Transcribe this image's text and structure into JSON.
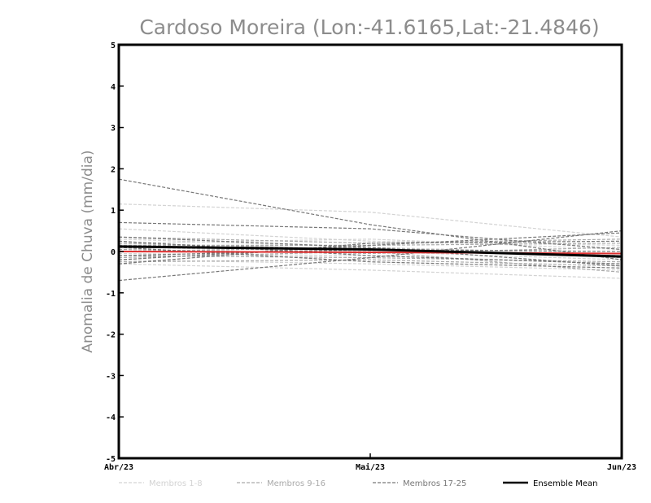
{
  "chart_data": {
    "type": "line",
    "title": "Cardoso Moreira (Lon:-41.6165,Lat:-21.4846)",
    "ylabel": "Anomalia de Chuva (mm/dia)",
    "xlabel": "",
    "categories": [
      "Abr/23",
      "Mai/23",
      "Jun/23"
    ],
    "ylim": [
      -5,
      5
    ],
    "yticks": [
      "5",
      "4",
      "3",
      "2",
      "1",
      "0",
      "-1",
      "-2",
      "-3",
      "-4",
      "-5"
    ],
    "grid": false,
    "legend_position": "bottom",
    "legend": [
      {
        "label": "Membros 1-8",
        "color": "#d3d3d3",
        "style": "dashed"
      },
      {
        "label": "Membros 9-16",
        "color": "#aaaaaa",
        "style": "dashed"
      },
      {
        "label": "Membros 17-25",
        "color": "#777777",
        "style": "dashed"
      },
      {
        "label": "Ensemble Mean",
        "color": "#000000",
        "style": "solid"
      }
    ],
    "series": [
      {
        "group": 1,
        "values": [
          1.15,
          0.95,
          0.35
        ]
      },
      {
        "group": 1,
        "values": [
          0.55,
          0.25,
          0.15
        ]
      },
      {
        "group": 1,
        "values": [
          0.3,
          0.1,
          -0.05
        ]
      },
      {
        "group": 1,
        "values": [
          0.1,
          0.0,
          -0.2
        ]
      },
      {
        "group": 1,
        "values": [
          -0.05,
          -0.1,
          -0.3
        ]
      },
      {
        "group": 1,
        "values": [
          -0.2,
          -0.3,
          -0.45
        ]
      },
      {
        "group": 1,
        "values": [
          -0.3,
          -0.45,
          -0.65
        ]
      },
      {
        "group": 1,
        "values": [
          0.2,
          0.3,
          0.05
        ]
      },
      {
        "group": 2,
        "values": [
          0.35,
          0.2,
          0.3
        ]
      },
      {
        "group": 2,
        "values": [
          0.2,
          0.05,
          -0.1
        ]
      },
      {
        "group": 2,
        "values": [
          0.05,
          -0.05,
          0.1
        ]
      },
      {
        "group": 2,
        "values": [
          -0.1,
          -0.15,
          -0.25
        ]
      },
      {
        "group": 2,
        "values": [
          -0.25,
          -0.2,
          -0.35
        ]
      },
      {
        "group": 2,
        "values": [
          0.15,
          0.15,
          0.2
        ]
      },
      {
        "group": 2,
        "values": [
          -0.15,
          0.0,
          -0.5
        ]
      },
      {
        "group": 2,
        "values": [
          0.0,
          0.1,
          -0.15
        ]
      },
      {
        "group": 3,
        "values": [
          1.75,
          0.65,
          -0.2
        ]
      },
      {
        "group": 3,
        "values": [
          0.7,
          0.55,
          0.05
        ]
      },
      {
        "group": 3,
        "values": [
          -0.7,
          -0.15,
          0.5
        ]
      },
      {
        "group": 3,
        "values": [
          0.35,
          0.1,
          -0.35
        ]
      },
      {
        "group": 3,
        "values": [
          -0.2,
          0.15,
          0.45
        ]
      },
      {
        "group": 3,
        "values": [
          0.25,
          -0.1,
          -0.3
        ]
      },
      {
        "group": 3,
        "values": [
          -0.3,
          0.2,
          0.25
        ]
      },
      {
        "group": 3,
        "values": [
          0.1,
          -0.25,
          -0.4
        ]
      },
      {
        "group": 3,
        "values": [
          -0.1,
          0.05,
          0.0
        ]
      }
    ],
    "reference": {
      "values": [
        0.0,
        -0.02,
        -0.05
      ],
      "color": "#e03030"
    },
    "ensemble_mean": {
      "name": "Ensemble Mean",
      "values": [
        0.12,
        0.05,
        -0.12
      ],
      "color": "#000000"
    }
  }
}
